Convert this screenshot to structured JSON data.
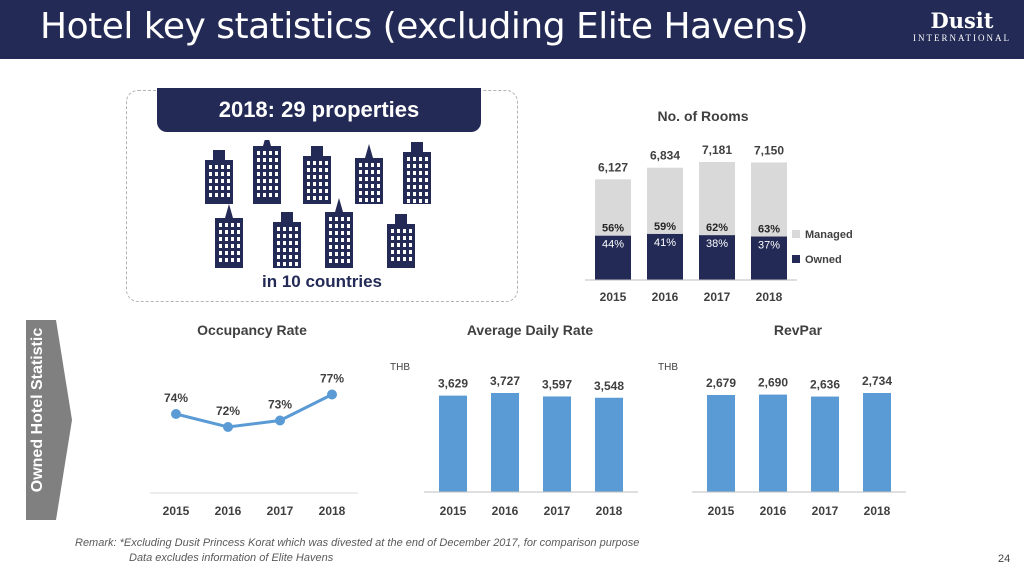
{
  "header": {
    "title": "Hotel key statistics (excluding Elite Havens)"
  },
  "logo": {
    "word": "Dusit",
    "sub": "INTERNATIONAL"
  },
  "properties": {
    "headline": "2018:  29 properties",
    "countries": "in 10 countries"
  },
  "side_label": "Owned Hotel Statistic",
  "remark": {
    "line1": "Remark:  *Excluding Dusit Princess Korat which was divested at the end of December 2017, for comparison purpose",
    "line2": "Data excludes information of Elite Havens"
  },
  "page_number": "24",
  "colors": {
    "navy": "#232a55",
    "bar_blue": "#5b9bd5",
    "managed_gray": "#d9d9d9",
    "line_blue": "#5b9bd5"
  },
  "icons": [
    "building-icon"
  ],
  "chart_data": [
    {
      "id": "rooms",
      "type": "bar",
      "title": "No. of Rooms",
      "categories": [
        "2015",
        "2016",
        "2017",
        "2018"
      ],
      "totals": [
        6127,
        6834,
        7181,
        7150
      ],
      "total_labels": [
        "6,127",
        "6,834",
        "7,181",
        "7,150"
      ],
      "series": [
        {
          "name": "Managed",
          "share_labels": [
            "56%",
            "59%",
            "62%",
            "63%"
          ],
          "color": "#d9d9d9"
        },
        {
          "name": "Owned",
          "share_labels": [
            "44%",
            "41%",
            "38%",
            "37%"
          ],
          "color": "#232a55"
        }
      ],
      "stacked": true,
      "legend": "right"
    },
    {
      "id": "occupancy",
      "type": "line",
      "title": "Occupancy Rate",
      "categories": [
        "2015",
        "2016",
        "2017",
        "2018"
      ],
      "values": [
        74,
        72,
        73,
        77
      ],
      "labels": [
        "74%",
        "72%",
        "73%",
        "77%"
      ]
    },
    {
      "id": "adr",
      "type": "bar",
      "title": "Average Daily Rate",
      "unit": "THB",
      "categories": [
        "2015",
        "2016",
        "2017",
        "2018"
      ],
      "values": [
        3629,
        3727,
        3597,
        3548
      ],
      "labels": [
        "3,629",
        "3,727",
        "3,597",
        "3,548"
      ]
    },
    {
      "id": "revpar",
      "type": "bar",
      "title": "RevPar",
      "unit": "THB",
      "categories": [
        "2015",
        "2016",
        "2017",
        "2018"
      ],
      "values": [
        2679,
        2690,
        2636,
        2734
      ],
      "labels": [
        "2,679",
        "2,690",
        "2,636",
        "2,734"
      ]
    }
  ]
}
